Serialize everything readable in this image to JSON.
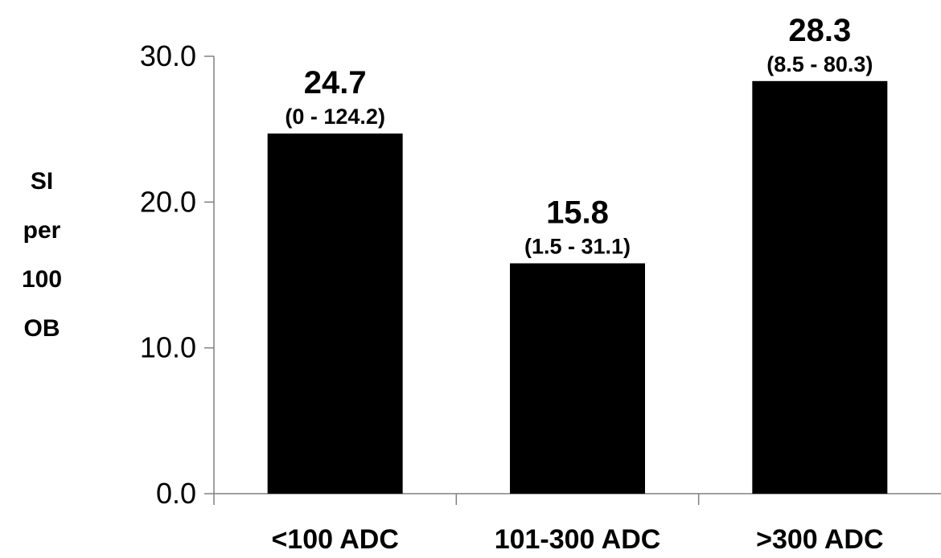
{
  "chart_data": {
    "type": "bar",
    "title": "",
    "xlabel": "",
    "ylabel_lines": [
      "SI",
      "per",
      "100",
      "OB"
    ],
    "categories": [
      "<100 ADC",
      "101-300 ADC",
      ">300 ADC"
    ],
    "values": [
      24.7,
      15.8,
      28.3
    ],
    "value_labels": [
      "24.7",
      "15.8",
      "28.3"
    ],
    "range_labels": [
      "(0 - 124.2)",
      "(1.5 - 31.1)",
      "(8.5 - 80.3)"
    ],
    "yticks": [
      "0.0",
      "10.0",
      "20.0",
      "30.0"
    ],
    "ylim": [
      0,
      30
    ],
    "grid": false,
    "legend": "none",
    "bar_color": "#000000"
  }
}
